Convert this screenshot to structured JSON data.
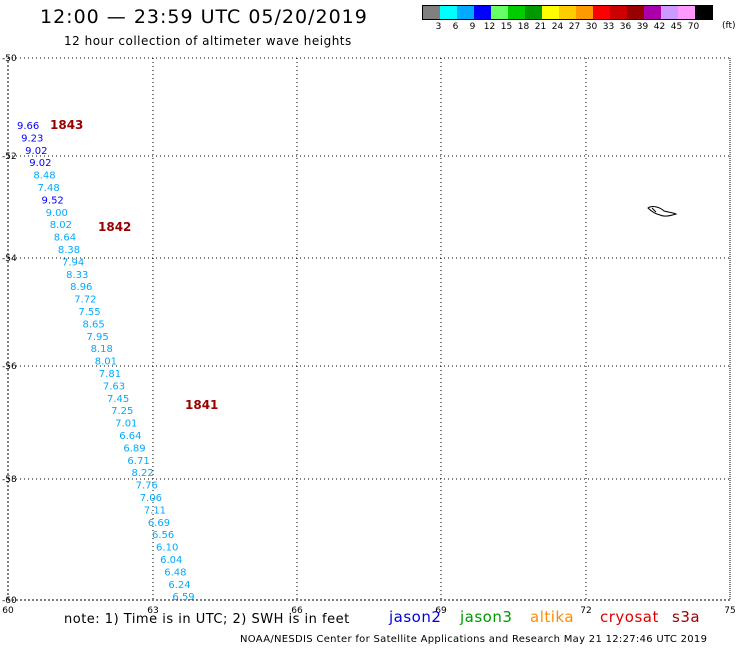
{
  "title": "12:00 — 23:59 UTC 05/20/2019",
  "subtitle": "12 hour collection of altimeter wave heights",
  "note": "note: 1) Time is in UTC; 2) SWH is in feet",
  "footer": "NOAA/NESDIS Center for Satellite Applications and Research    May 21 12:27:46 UTC 2019",
  "legend": {
    "units": "(ft)",
    "labels": [
      "3",
      "6",
      "9",
      "12",
      "15",
      "18",
      "21",
      "24",
      "27",
      "30",
      "33",
      "36",
      "39",
      "42",
      "45",
      "70"
    ],
    "colors": [
      "#808080",
      "#00ffff",
      "#00aaff",
      "#0000ff",
      "#66ff66",
      "#00cc00",
      "#009900",
      "#ffff00",
      "#ffcc00",
      "#ff9900",
      "#ff0000",
      "#cc0000",
      "#990000",
      "#aa00aa",
      "#cc99ff",
      "#ff99ff",
      "#000000"
    ]
  },
  "satellites": [
    {
      "name": "jason2",
      "color": "#0000dd"
    },
    {
      "name": "jason3",
      "color": "#009900"
    },
    {
      "name": "altika",
      "color": "#ff8c00"
    },
    {
      "name": "cryosat",
      "color": "#dd0000"
    },
    {
      "name": "s3a",
      "color": "#990000"
    }
  ],
  "axes": {
    "lon_ticks": [
      "60",
      "63",
      "66",
      "69",
      "72",
      "75"
    ],
    "lat_ticks": [
      "-50",
      "-52",
      "-54",
      "-56",
      "-58",
      "-60"
    ]
  },
  "tracks": [
    {
      "label": "1843",
      "color": "#990000",
      "points": [
        {
          "v": "9.66",
          "c": "#0000ff"
        },
        {
          "v": "9.23",
          "c": "#0000ff"
        },
        {
          "v": "9.02",
          "c": "#0000ff"
        },
        {
          "v": "9.02",
          "c": "#0000ff"
        },
        {
          "v": "8.48",
          "c": "#00aaff"
        },
        {
          "v": "7.48",
          "c": "#00aaff"
        },
        {
          "v": "9.52",
          "c": "#0000ff"
        },
        {
          "v": "9.00",
          "c": "#00aaff"
        },
        {
          "v": "8.02",
          "c": "#00aaff"
        },
        {
          "v": "8.64",
          "c": "#00aaff"
        }
      ]
    },
    {
      "label": "1842",
      "color": "#990000",
      "points": [
        {
          "v": "8.38",
          "c": "#00aaff"
        },
        {
          "v": "7.94",
          "c": "#00aaff"
        },
        {
          "v": "8.33",
          "c": "#00aaff"
        },
        {
          "v": "8.96",
          "c": "#00aaff"
        },
        {
          "v": "7.72",
          "c": "#00aaff"
        },
        {
          "v": "7.55",
          "c": "#00aaff"
        },
        {
          "v": "8.65",
          "c": "#00aaff"
        },
        {
          "v": "7.95",
          "c": "#00aaff"
        },
        {
          "v": "8.18",
          "c": "#00aaff"
        },
        {
          "v": "8.01",
          "c": "#00aaff"
        },
        {
          "v": "7.81",
          "c": "#00aaff"
        },
        {
          "v": "7.63",
          "c": "#00aaff"
        },
        {
          "v": "7.45",
          "c": "#00aaff"
        },
        {
          "v": "7.25",
          "c": "#00aaff"
        },
        {
          "v": "7.01",
          "c": "#00aaff"
        }
      ]
    },
    {
      "label": "1841",
      "color": "#990000",
      "points": [
        {
          "v": "6.64",
          "c": "#00aaff"
        },
        {
          "v": "6.89",
          "c": "#00aaff"
        },
        {
          "v": "6.71",
          "c": "#00aaff"
        },
        {
          "v": "8.22",
          "c": "#00aaff"
        },
        {
          "v": "7.76",
          "c": "#00aaff"
        },
        {
          "v": "7.06",
          "c": "#00aaff"
        },
        {
          "v": "7.11",
          "c": "#00aaff"
        },
        {
          "v": "6.69",
          "c": "#00aaff"
        },
        {
          "v": "6.56",
          "c": "#00aaff"
        },
        {
          "v": "6.10",
          "c": "#00aaff"
        },
        {
          "v": "6.04",
          "c": "#00aaff"
        },
        {
          "v": "6.48",
          "c": "#00aaff"
        },
        {
          "v": "6.24",
          "c": "#00aaff"
        },
        {
          "v": "6.59",
          "c": "#00aaff"
        }
      ]
    }
  ]
}
